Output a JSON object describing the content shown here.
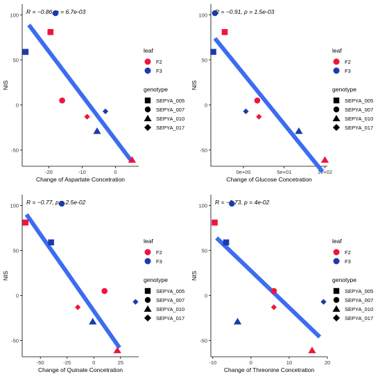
{
  "colors": {
    "F2": "#f0143c",
    "F3": "#1c3ca8",
    "fit_line": "#3c6cf0"
  },
  "legend": {
    "leaf_title": "leaf",
    "leaf_items": [
      "F2",
      "F3"
    ],
    "genotype_title": "genotype",
    "genotype_items": [
      "SEPYA_005",
      "SEPYA_007",
      "SEPYA_010",
      "SEPYA_017"
    ]
  },
  "chart_data": [
    {
      "type": "scatter",
      "stat_label": "R = −0.86, p = 6.7e-03",
      "xlabel": "Change of Aspartate Concetration",
      "ylabel": "NIS",
      "xlim": [
        -28,
        7
      ],
      "ylim": [
        -68,
        112
      ],
      "xticks": [
        {
          "v": -20,
          "t": "-20"
        },
        {
          "v": -10,
          "t": "-10"
        },
        {
          "v": 0,
          "t": "0"
        }
      ],
      "yticks": [
        {
          "v": -50,
          "t": "-50"
        },
        {
          "v": 0,
          "t": "0"
        },
        {
          "v": 50,
          "t": "50"
        },
        {
          "v": 100,
          "t": "100"
        }
      ],
      "fit_line": [
        [
          -26,
          89
        ],
        [
          5,
          -63
        ]
      ],
      "points": [
        {
          "x": -19.5,
          "y": 81,
          "leaf": "F2",
          "genotype": "SEPYA_005",
          "size": 1
        },
        {
          "x": -16,
          "y": 5,
          "leaf": "F2",
          "genotype": "SEPYA_007",
          "size": 1
        },
        {
          "x": 5,
          "y": -61,
          "leaf": "F2",
          "genotype": "SEPYA_010",
          "size": 1
        },
        {
          "x": -8.5,
          "y": -13,
          "leaf": "F2",
          "genotype": "SEPYA_017",
          "size": 0.8
        },
        {
          "x": -27,
          "y": 59,
          "leaf": "F3",
          "genotype": "SEPYA_005",
          "size": 1
        },
        {
          "x": -18,
          "y": 102,
          "leaf": "F3",
          "genotype": "SEPYA_007",
          "size": 1
        },
        {
          "x": -5.5,
          "y": -29,
          "leaf": "F3",
          "genotype": "SEPYA_010",
          "size": 1
        },
        {
          "x": -3,
          "y": -7,
          "leaf": "F3",
          "genotype": "SEPYA_017",
          "size": 0.8
        }
      ]
    },
    {
      "type": "scatter",
      "stat_label": "R = −0.91, p = 1.5e-03",
      "xlabel": "Change of Glucose Concetration",
      "ylabel": "NIS",
      "xlim": [
        -40,
        103
      ],
      "ylim": [
        -68,
        112
      ],
      "xticks": [
        {
          "v": 0,
          "t": "0e+00"
        },
        {
          "v": 50,
          "t": "5e+01"
        },
        {
          "v": 100,
          "t": "1e+02"
        }
      ],
      "yticks": [
        {
          "v": -50,
          "t": "-50"
        },
        {
          "v": 0,
          "t": "0"
        },
        {
          "v": 50,
          "t": "50"
        },
        {
          "v": 100,
          "t": "100"
        }
      ],
      "fit_line": [
        [
          -35,
          74
        ],
        [
          97,
          -74
        ]
      ],
      "points": [
        {
          "x": -23,
          "y": 81,
          "leaf": "F2",
          "genotype": "SEPYA_005",
          "size": 1
        },
        {
          "x": 17,
          "y": 5,
          "leaf": "F2",
          "genotype": "SEPYA_007",
          "size": 1
        },
        {
          "x": 100,
          "y": -61,
          "leaf": "F2",
          "genotype": "SEPYA_010",
          "size": 1
        },
        {
          "x": 19,
          "y": -13,
          "leaf": "F2",
          "genotype": "SEPYA_017",
          "size": 0.8
        },
        {
          "x": -37,
          "y": 59,
          "leaf": "F3",
          "genotype": "SEPYA_005",
          "size": 1
        },
        {
          "x": -35,
          "y": 102,
          "leaf": "F3",
          "genotype": "SEPYA_007",
          "size": 1
        },
        {
          "x": 68,
          "y": -29,
          "leaf": "F3",
          "genotype": "SEPYA_010",
          "size": 1
        },
        {
          "x": 3,
          "y": -7,
          "leaf": "F3",
          "genotype": "SEPYA_017",
          "size": 0.8
        }
      ]
    },
    {
      "type": "scatter",
      "stat_label": "R = −0.77, p = 2.5e-02",
      "xlabel": "Change of Quinate Concetration",
      "ylabel": "NIS",
      "xlim": [
        -67,
        42
      ],
      "ylim": [
        -68,
        112
      ],
      "xticks": [
        {
          "v": -50,
          "t": "-50"
        },
        {
          "v": -25,
          "t": "-25"
        },
        {
          "v": 0,
          "t": "0"
        },
        {
          "v": 25,
          "t": "25"
        }
      ],
      "yticks": [
        {
          "v": -50,
          "t": "-50"
        },
        {
          "v": 0,
          "t": "0"
        },
        {
          "v": 50,
          "t": "50"
        },
        {
          "v": 100,
          "t": "100"
        }
      ],
      "fit_line": [
        [
          -63,
          90
        ],
        [
          24,
          -58
        ]
      ],
      "points": [
        {
          "x": -64,
          "y": 81,
          "leaf": "F2",
          "genotype": "SEPYA_005",
          "size": 1
        },
        {
          "x": 10,
          "y": 5,
          "leaf": "F2",
          "genotype": "SEPYA_007",
          "size": 1
        },
        {
          "x": 22,
          "y": -61,
          "leaf": "F2",
          "genotype": "SEPYA_010",
          "size": 1
        },
        {
          "x": -15,
          "y": -13,
          "leaf": "F2",
          "genotype": "SEPYA_017",
          "size": 0.8
        },
        {
          "x": -40,
          "y": 59,
          "leaf": "F3",
          "genotype": "SEPYA_005",
          "size": 1
        },
        {
          "x": -30,
          "y": 102,
          "leaf": "F3",
          "genotype": "SEPYA_007",
          "size": 1
        },
        {
          "x": -1,
          "y": -29,
          "leaf": "F3",
          "genotype": "SEPYA_010",
          "size": 1
        },
        {
          "x": 39,
          "y": -7,
          "leaf": "F3",
          "genotype": "SEPYA_017",
          "size": 0.8
        }
      ]
    },
    {
      "type": "scatter",
      "stat_label": "R = −0.73, p = 4e-02",
      "xlabel": "Change of Threonine Concetration",
      "ylabel": "NIS",
      "xlim": [
        -10.5,
        20
      ],
      "ylim": [
        -68,
        112
      ],
      "xticks": [
        {
          "v": -10,
          "t": "-10"
        },
        {
          "v": 0,
          "t": "0"
        },
        {
          "v": 10,
          "t": "10"
        },
        {
          "v": 20,
          "t": "20"
        }
      ],
      "yticks": [
        {
          "v": -50,
          "t": "-50"
        },
        {
          "v": 0,
          "t": "0"
        },
        {
          "v": 50,
          "t": "50"
        },
        {
          "v": 100,
          "t": "100"
        }
      ],
      "fit_line": [
        [
          -9,
          64
        ],
        [
          18,
          -46
        ]
      ],
      "points": [
        {
          "x": -9.5,
          "y": 81,
          "leaf": "F2",
          "genotype": "SEPYA_005",
          "size": 1
        },
        {
          "x": 6,
          "y": 5,
          "leaf": "F2",
          "genotype": "SEPYA_007",
          "size": 1
        },
        {
          "x": 16,
          "y": -61,
          "leaf": "F2",
          "genotype": "SEPYA_010",
          "size": 1
        },
        {
          "x": 6,
          "y": -13,
          "leaf": "F2",
          "genotype": "SEPYA_017",
          "size": 0.8
        },
        {
          "x": -6.5,
          "y": 59,
          "leaf": "F3",
          "genotype": "SEPYA_005",
          "size": 1
        },
        {
          "x": -5,
          "y": 102,
          "leaf": "F3",
          "genotype": "SEPYA_007",
          "size": 1
        },
        {
          "x": -3.5,
          "y": -29,
          "leaf": "F3",
          "genotype": "SEPYA_010",
          "size": 1
        },
        {
          "x": 19,
          "y": -7,
          "leaf": "F3",
          "genotype": "SEPYA_017",
          "size": 0.8
        }
      ]
    }
  ]
}
